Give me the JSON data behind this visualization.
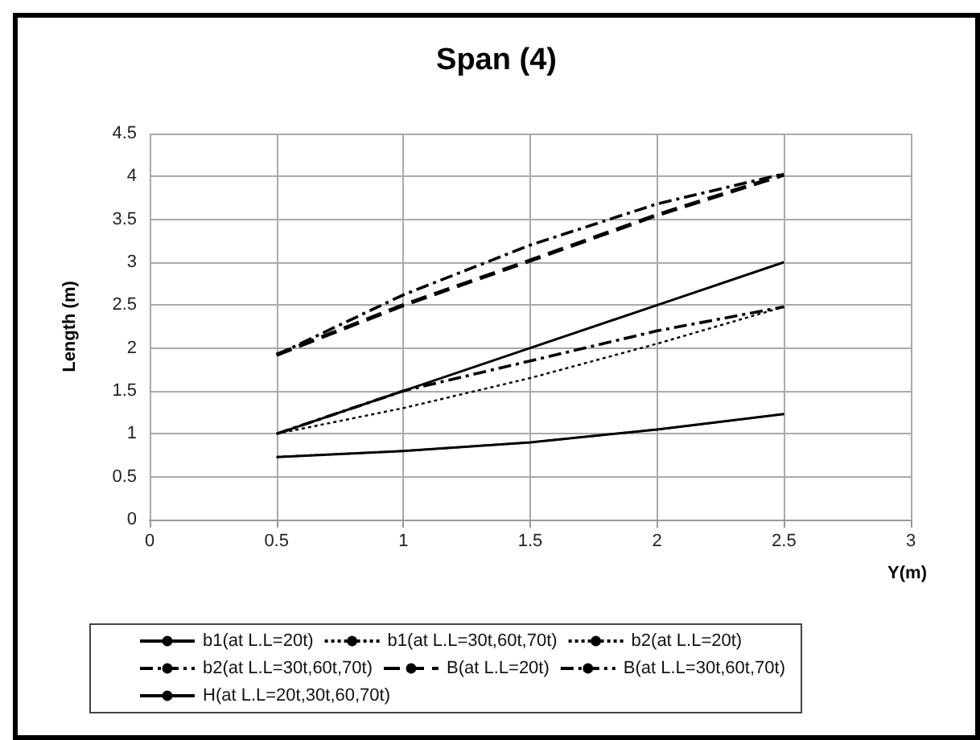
{
  "chart_data": {
    "type": "line",
    "title": "Span (4)",
    "xlabel": "Y(m)",
    "ylabel": "Length (m)",
    "x": [
      0.5,
      1,
      1.5,
      2,
      2.5
    ],
    "series": [
      {
        "name": "b1(at L.L=20t)",
        "color": "#000000",
        "line_style": "solid",
        "values": [
          0.73,
          0.8,
          0.9,
          1.05,
          1.23
        ]
      },
      {
        "name": "b1(at L.L=30t,60t,70t)",
        "color": "#000000",
        "line_style": "dotted",
        "values": [
          0.73,
          0.8,
          0.9,
          1.05,
          1.23
        ]
      },
      {
        "name": "b2(at L.L=20t)",
        "color": "#000000",
        "line_style": "dotted",
        "values": [
          1.0,
          1.3,
          1.65,
          2.05,
          2.48
        ]
      },
      {
        "name": "b2(at L.L=30t,60t,70t)",
        "color": "#000000",
        "line_style": "dashdot",
        "values": [
          1.0,
          1.5,
          1.85,
          2.2,
          2.48
        ]
      },
      {
        "name": "B(at L.L=20t)",
        "color": "#000000",
        "line_style": "dashed",
        "values": [
          1.92,
          2.5,
          3.02,
          3.55,
          4.02
        ]
      },
      {
        "name": "B(at L.L=30t,60t,70t)",
        "color": "#000000",
        "line_style": "dashdot",
        "values": [
          1.92,
          2.62,
          3.2,
          3.68,
          4.03
        ]
      },
      {
        "name": "H(at L.L=20t,30t,60,70t)",
        "color": "#000000",
        "line_style": "solid",
        "values": [
          1.0,
          1.5,
          2.0,
          2.5,
          3.0
        ]
      }
    ],
    "xlim": [
      0,
      3
    ],
    "xticks": [
      0,
      0.5,
      1,
      1.5,
      2,
      2.5,
      3
    ],
    "ylim": [
      0,
      4.5
    ],
    "yticks": [
      0,
      0.5,
      1,
      1.5,
      2,
      2.5,
      3,
      3.5,
      4,
      4.5
    ],
    "grid": true,
    "legend": "bottom",
    "marker": "none"
  }
}
